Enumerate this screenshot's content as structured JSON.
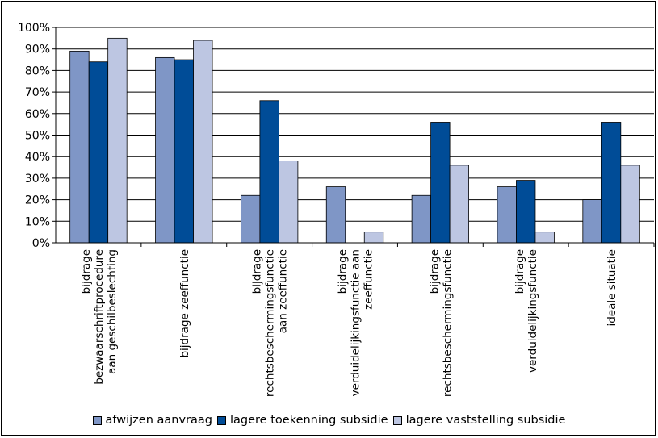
{
  "chart_data": {
    "type": "bar",
    "title": "",
    "xlabel": "",
    "ylabel": "",
    "ylim": [
      0,
      100
    ],
    "yticks": [
      "0%",
      "10%",
      "20%",
      "30%",
      "40%",
      "50%",
      "60%",
      "70%",
      "80%",
      "90%",
      "100%"
    ],
    "grid": true,
    "legend_position": "bottom",
    "categories": [
      [
        "bijdrage",
        "bezwaarschriftprocedure",
        "aan geschilbeslechting"
      ],
      [
        "bijdrage zeeffunctie"
      ],
      [
        "bijdrage",
        "rechtsbeschermingsfunctie",
        "aan zeeffunctie"
      ],
      [
        "bijdrage",
        "verduidelijkingsfunctie aan",
        "zeeffunctie"
      ],
      [
        "bijdrage",
        "rechtsbeschermingsfunctie"
      ],
      [
        "bijdrage",
        "verduidelijkingsfunctie"
      ],
      [
        "ideale situatie"
      ]
    ],
    "series": [
      {
        "name": "afwijzen aanvraag",
        "color": "#7F96C6",
        "values": [
          89,
          86,
          22,
          26,
          22,
          26,
          20
        ]
      },
      {
        "name": "lagere toekenning subsidie",
        "color": "#004C97",
        "values": [
          84,
          85,
          66,
          0,
          56,
          29,
          56
        ]
      },
      {
        "name": "lagere vaststelling subsidie",
        "color": "#BDC6E2",
        "values": [
          95,
          94,
          38,
          5,
          36,
          5,
          36
        ]
      }
    ]
  }
}
